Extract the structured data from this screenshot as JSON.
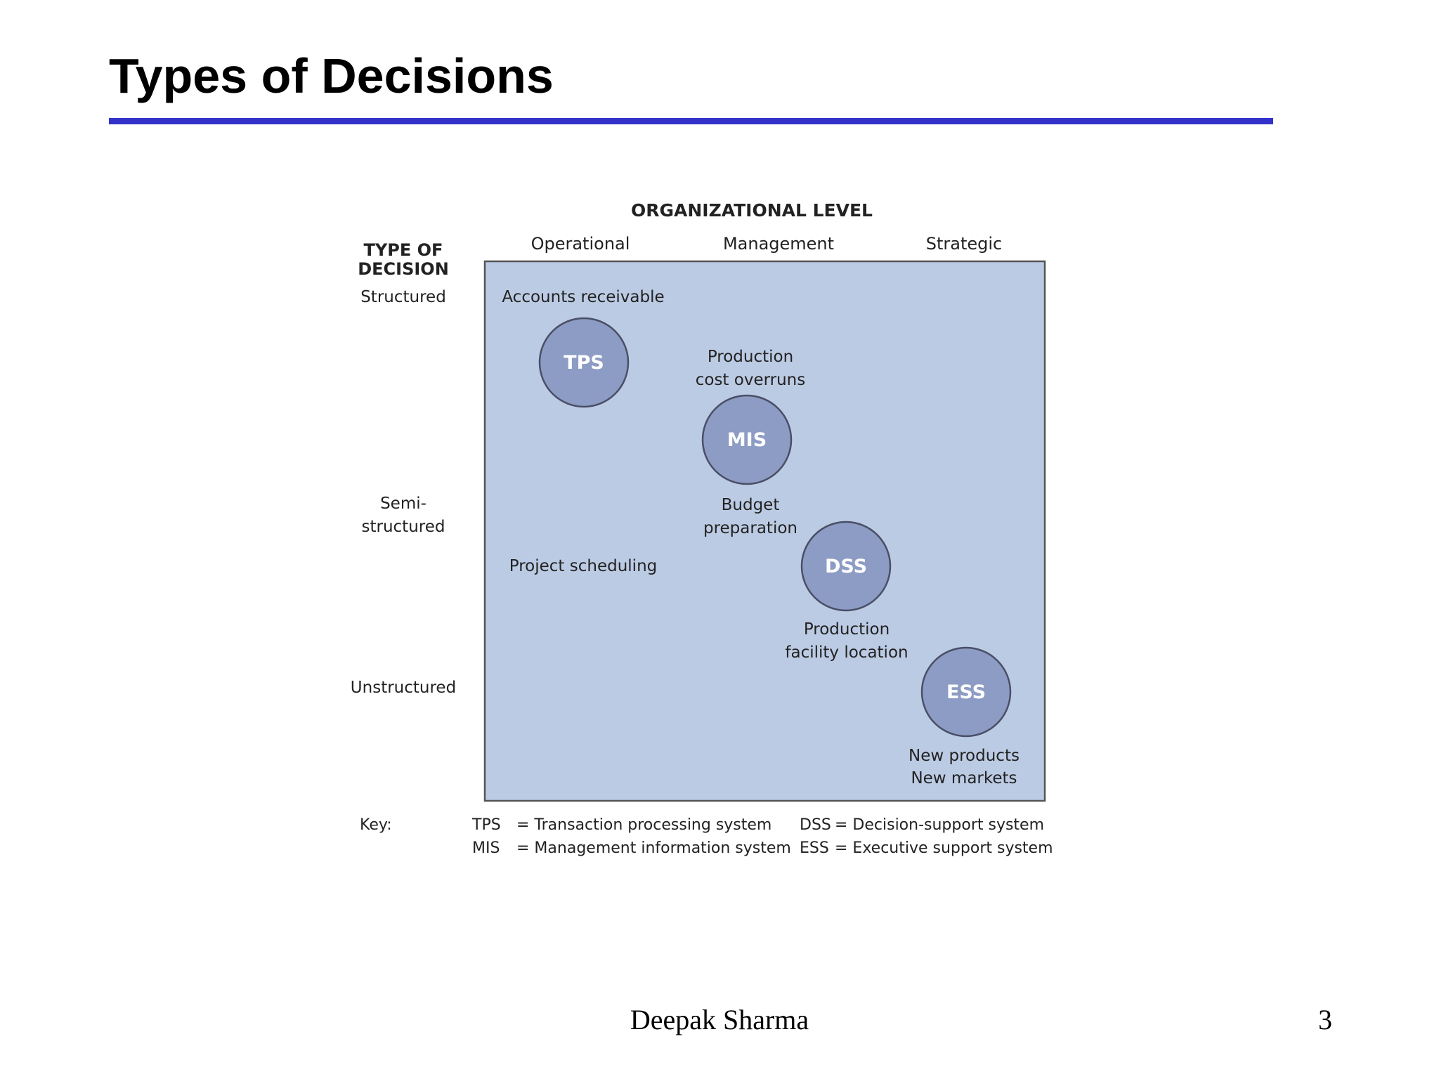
{
  "slide": {
    "title": "Types of Decisions",
    "title_rule_color": "#3333cc",
    "author": "Deepak Sharma",
    "page_number": "3"
  },
  "diagram": {
    "heading": "ORGANIZATIONAL LEVEL",
    "columns": [
      "Operational",
      "Management",
      "Strategic"
    ],
    "row_heading_lines": [
      "TYPE OF",
      "DECISION"
    ],
    "rows": {
      "structured": "Structured",
      "semi_line1": "Semi-",
      "semi_line2": "structured",
      "unstructured": "Unstructured"
    },
    "panel_color": "#bccbe4",
    "circle_color": "#8d9cc4",
    "systems": [
      "TPS",
      "MIS",
      "DSS",
      "ESS"
    ],
    "examples": {
      "accounts_receivable": "Accounts receivable",
      "production_cost_line1": "Production",
      "production_cost_line2": "cost overruns",
      "budget_line1": "Budget",
      "budget_line2": "preparation",
      "project_scheduling": "Project scheduling",
      "facility_line1": "Production",
      "facility_line2": "facility location",
      "new_products": "New products",
      "new_markets": "New markets"
    },
    "key": {
      "label": "Key:",
      "entries": [
        {
          "abbr": "TPS",
          "desc": "= Transaction processing system"
        },
        {
          "abbr": "MIS",
          "desc": "= Management information system"
        },
        {
          "abbr": "DSS",
          "desc": "= Decision-support system"
        },
        {
          "abbr": "ESS",
          "desc": "= Executive support system"
        }
      ]
    }
  }
}
